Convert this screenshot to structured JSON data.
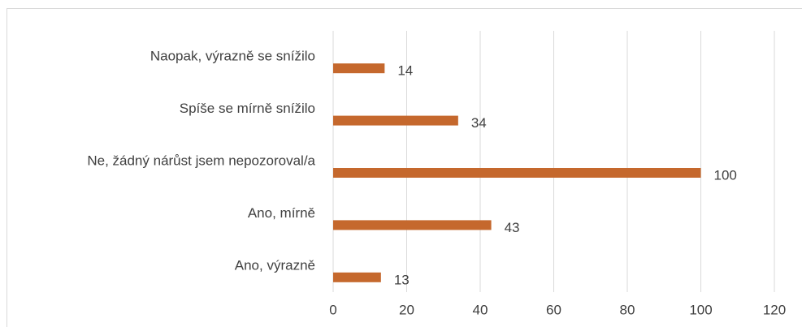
{
  "chart_data": {
    "type": "hbar",
    "categories": [
      "Naopak, výrazně se snížilo",
      "Spíše se mírně snížilo",
      "Ne, žádný nárůst jsem nepozoroval/a",
      "Ano, mírně",
      "Ano, výrazně"
    ],
    "values": [
      14,
      34,
      100,
      43,
      13
    ],
    "color": "#c5682d",
    "xlim": [
      0,
      120
    ],
    "xticks": [
      0,
      20,
      40,
      60,
      80,
      100,
      120
    ],
    "grid": true
  }
}
